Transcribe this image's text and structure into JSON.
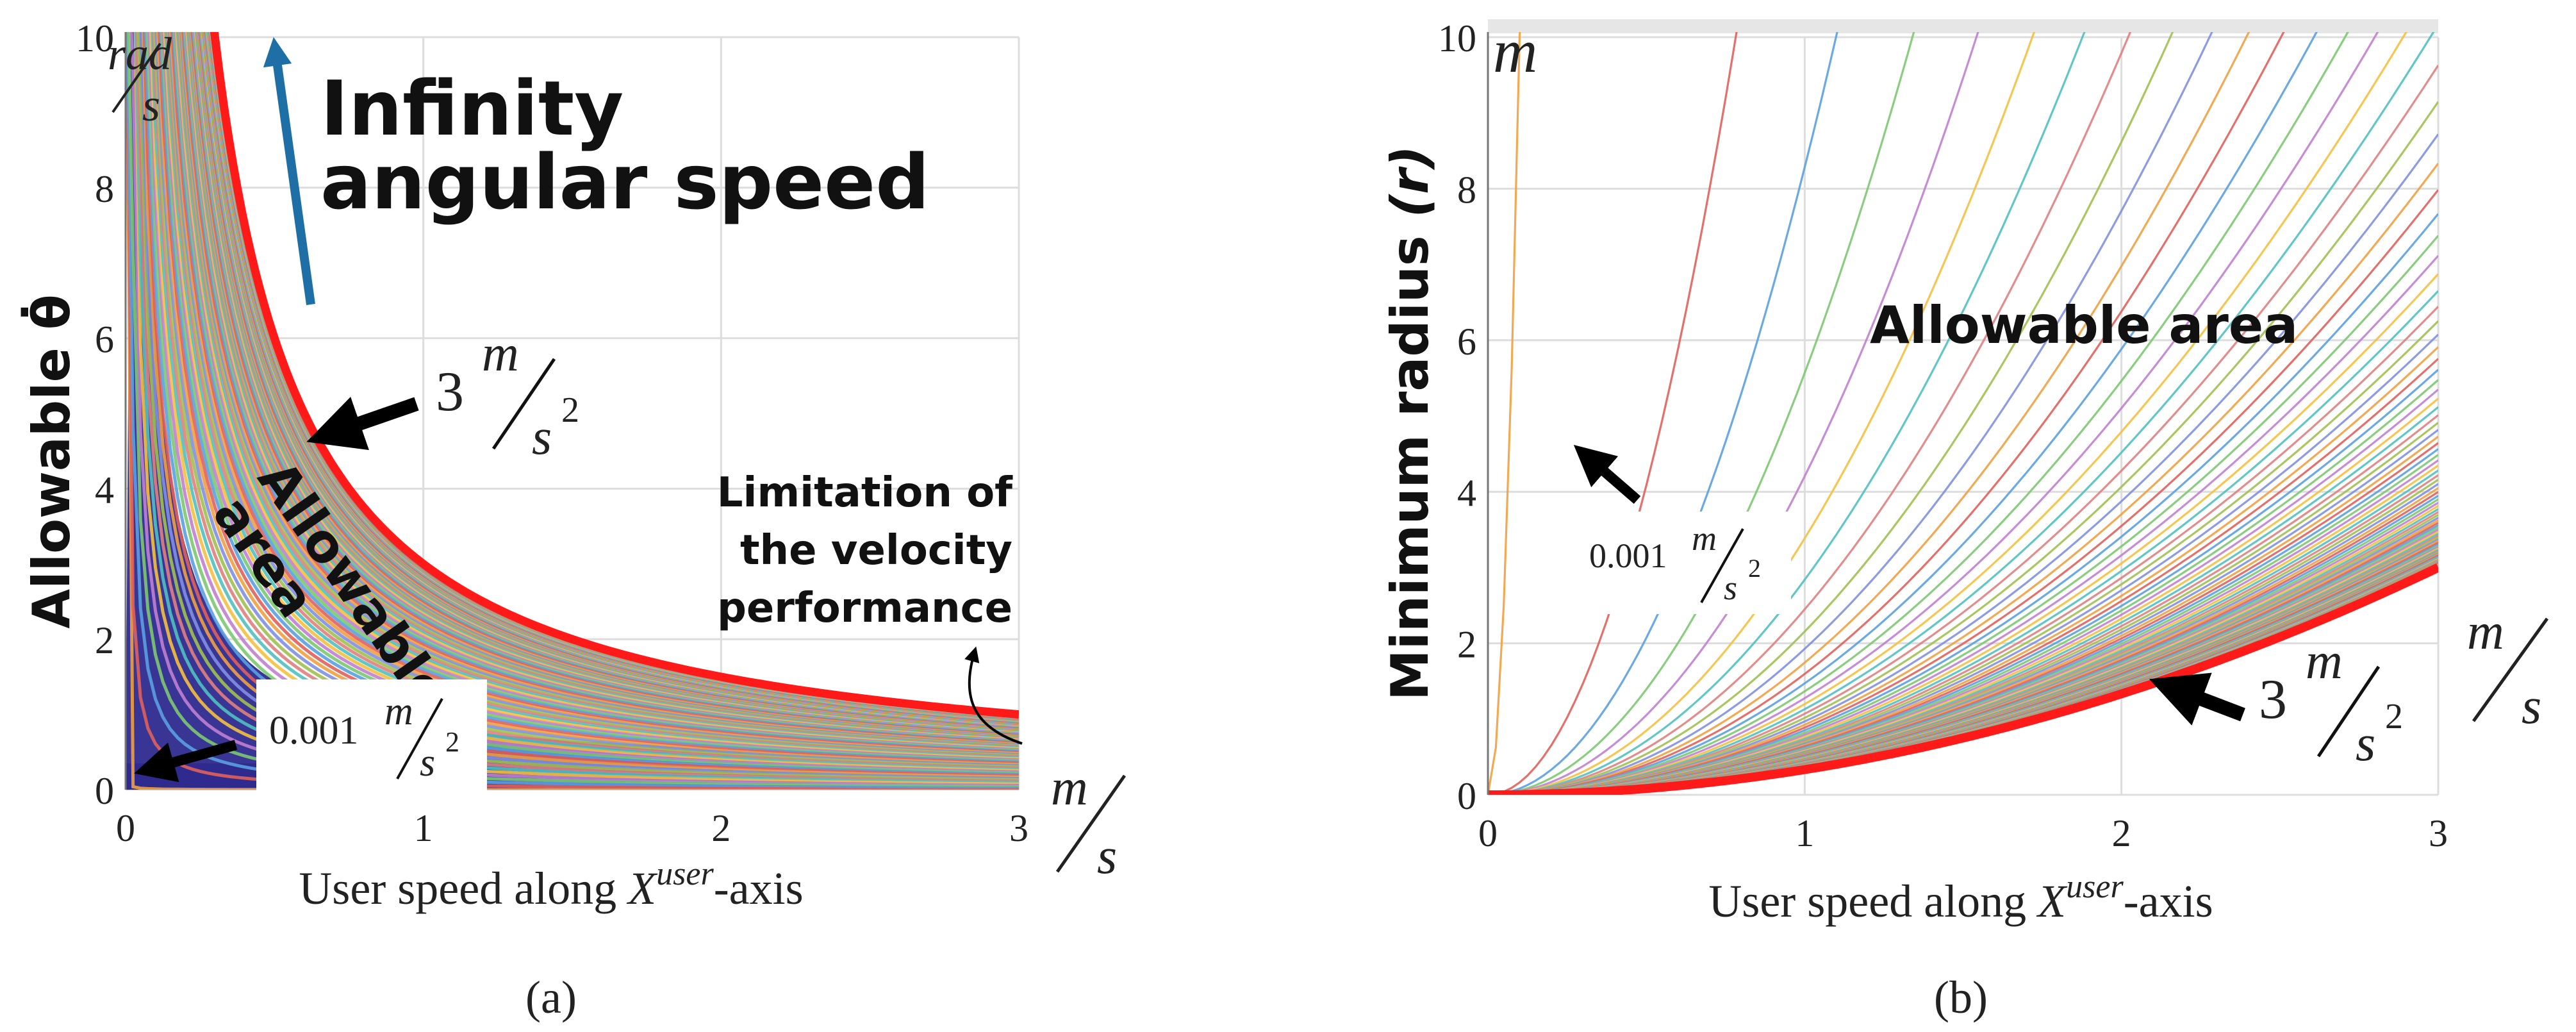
{
  "chart_data": [
    {
      "panel": "a",
      "type": "line",
      "caption": "(a)",
      "ylabel": "Allowable θ̇",
      "xlabel": {
        "main": "User speed along ",
        "var": "X",
        "sup": "user",
        "tail": "-axis"
      },
      "xlim": [
        0,
        3
      ],
      "ylim": [
        0,
        10
      ],
      "x_ticks": [
        "0",
        "1",
        "2",
        "3"
      ],
      "y_ticks": [
        "0",
        "2",
        "4",
        "6",
        "8",
        "10"
      ],
      "x_unit": {
        "num": "m",
        "den": "s"
      },
      "y_unit": {
        "num": "rad",
        "den": "s"
      },
      "family_formula": "theta_dot = a / v",
      "accel_range": [
        0.001,
        3
      ],
      "curve_count": 110,
      "boundary_curve": {
        "accel": 3,
        "label_num": "m",
        "label_den": "s",
        "label_pow": "2",
        "color": "#ff1a1a"
      },
      "lowest_curve_label": {
        "value": "0.001",
        "num": "m",
        "den": "s",
        "pow": "2"
      },
      "annotations": {
        "infinity_line1": "Infinity",
        "infinity_line2": "angular speed",
        "allowable_line1": "Allowable",
        "allowable_line2": "area",
        "limitation_line1": "Limitation of",
        "limitation_line2": "the velocity",
        "limitation_line3": "performance",
        "boundary_value": "3"
      },
      "colors": {
        "fill": "#2e2a8e",
        "arrow": "#1e6fa6",
        "boundary": "#ff1a1a"
      }
    },
    {
      "panel": "b",
      "type": "line",
      "caption": "(b)",
      "ylabel": "Minimum radius (r)",
      "ylabel_main": "Minimum radius ",
      "ylabel_var": "(r)",
      "xlabel": {
        "main": "User speed along ",
        "var": "X",
        "sup": "user",
        "tail": "-axis"
      },
      "xlim": [
        0,
        3
      ],
      "ylim": [
        0,
        10
      ],
      "x_ticks": [
        "0",
        "1",
        "2",
        "3"
      ],
      "y_ticks": [
        "0",
        "2",
        "4",
        "6",
        "8",
        "10"
      ],
      "x_unit": {
        "num": "m",
        "den": "s"
      },
      "y_unit": {
        "num": "m"
      },
      "family_formula": "r = v^2 / a",
      "accel_range": [
        0.001,
        3
      ],
      "curve_count": 110,
      "boundary_curve": {
        "accel": 3,
        "label_num": "m",
        "label_den": "s",
        "label_pow": "2",
        "color": "#ff1a1a"
      },
      "lowest_curve_label": {
        "value": "0.001",
        "num": "m",
        "den": "s",
        "pow": "2"
      },
      "annotations": {
        "allowable": "Allowable area",
        "boundary_value": "3"
      },
      "colors": {
        "boundary": "#ff1a1a"
      }
    }
  ]
}
